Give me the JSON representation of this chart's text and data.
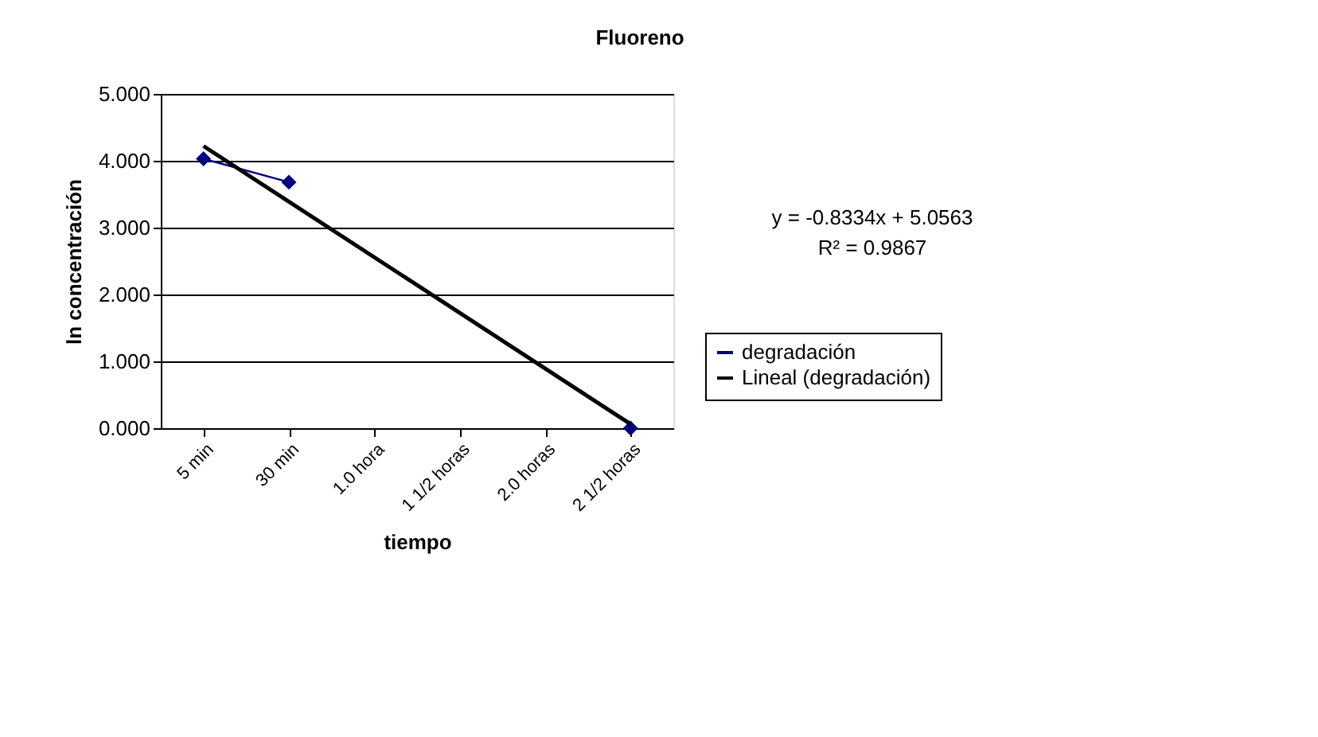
{
  "chart_data": {
    "type": "line",
    "title": "Fluoreno",
    "xlabel": "tiempo",
    "ylabel": "ln concentración",
    "categories": [
      "5 min",
      "30 min",
      "1.0 hora",
      "1 1/2 horas",
      "2.0 horas",
      "2 1/2 horas"
    ],
    "series": [
      {
        "name": "degradación",
        "color": "#000080",
        "values": [
          4.03,
          3.68,
          null,
          null,
          null,
          0.0
        ],
        "marker": "diamond",
        "line_style": "solid"
      },
      {
        "name": "Lineal (degradación)",
        "type": "line",
        "color": "#000000",
        "x": [
          "5 min",
          "2 1/2 horas"
        ],
        "values": [
          4.22,
          0.06
        ],
        "marker": "none",
        "line_style": "solid"
      }
    ],
    "ylim": [
      0,
      5
    ],
    "yticks": [
      {
        "value": 0,
        "label": "0.000"
      },
      {
        "value": 1,
        "label": "1.000"
      },
      {
        "value": 2,
        "label": "2.000"
      },
      {
        "value": 3,
        "label": "3.000"
      },
      {
        "value": 4,
        "label": "4.000"
      },
      {
        "value": 5,
        "label": "5.000"
      }
    ],
    "grid": "y",
    "legend": "right",
    "annotations": [
      "y = -0.8334x + 5.0563",
      "R² = 0.9867"
    ]
  }
}
